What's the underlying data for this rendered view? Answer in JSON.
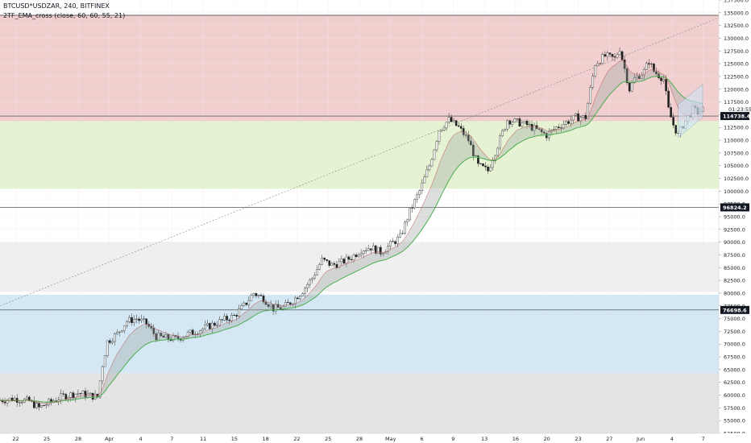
{
  "header": {
    "symbol_line": "BTCUSD*USDZAR, 240, BITFINEX",
    "indicator_line": "2TF_EMA_cross (close, 60, 60, 55, 21)"
  },
  "chart_data": {
    "type": "candlestick",
    "ylim": [
      52500,
      137500
    ],
    "y_ticks": [
      "52500.0",
      "55000.0",
      "57500.0",
      "60000.0",
      "62500.0",
      "65000.0",
      "67500.0",
      "70000.0",
      "72500.0",
      "75000.0",
      "77500.0",
      "80000.0",
      "82500.0",
      "85000.0",
      "87500.0",
      "90000.0",
      "92500.0",
      "95000.0",
      "97500.0",
      "100000.0",
      "102500.0",
      "105000.0",
      "107500.0",
      "110000.0",
      "112500.0",
      "115000.0",
      "117500.0",
      "120000.0",
      "122500.0",
      "125000.0",
      "127500.0",
      "130000.0",
      "132500.0",
      "135000.0",
      "137500.0"
    ],
    "x_labels": [
      "22",
      "25",
      "28",
      "Apr",
      "4",
      "7",
      "11",
      "15",
      "18",
      "22",
      "25",
      "28",
      "May",
      "6",
      "9",
      "13",
      "16",
      "20",
      "23",
      "27",
      "Jun",
      "4",
      "7"
    ],
    "zones": [
      {
        "name": "red-zone",
        "from": 113700,
        "to": 134500,
        "color": "#f2cfcf"
      },
      {
        "name": "green-zone",
        "from": 100500,
        "to": 113700,
        "color": "#e5f3d2"
      },
      {
        "name": "grey-zone",
        "from": 80300,
        "to": 90000,
        "color": "#efefef"
      },
      {
        "name": "blue-zone",
        "from": 64300,
        "to": 79700,
        "color": "#d3e8f4"
      },
      {
        "name": "bottom-grey-zone",
        "from": 52500,
        "to": 64300,
        "color": "#e4e4e4"
      }
    ],
    "levels": [
      {
        "value": 134500,
        "label": ""
      },
      {
        "value": 114738.4,
        "label": "114738.4"
      },
      {
        "value": 96824.2,
        "label": "96824.2"
      },
      {
        "value": 76698.6,
        "label": "76698.6"
      }
    ],
    "countdown_label": "01:23:55",
    "price_path": [
      [
        0,
        59000
      ],
      [
        3,
        59300
      ],
      [
        6,
        58800
      ],
      [
        8,
        57500
      ],
      [
        10,
        58500
      ],
      [
        13,
        59800
      ],
      [
        16,
        60400
      ],
      [
        18,
        60000
      ],
      [
        20,
        59600
      ],
      [
        21,
        66000
      ],
      [
        22,
        70500
      ],
      [
        24,
        72000
      ],
      [
        26,
        74500
      ],
      [
        28,
        75000
      ],
      [
        30,
        74000
      ],
      [
        32,
        71500
      ],
      [
        34,
        71200
      ],
      [
        36,
        71000
      ],
      [
        38,
        71800
      ],
      [
        40,
        72500
      ],
      [
        42,
        73200
      ],
      [
        44,
        74000
      ],
      [
        46,
        74800
      ],
      [
        48,
        75500
      ],
      [
        50,
        77500
      ],
      [
        52,
        80000
      ],
      [
        54,
        79000
      ],
      [
        55,
        78000
      ],
      [
        56,
        77000
      ],
      [
        58,
        77200
      ],
      [
        60,
        78500
      ],
      [
        62,
        80500
      ],
      [
        64,
        83000
      ],
      [
        66,
        86500
      ],
      [
        68,
        85500
      ],
      [
        70,
        86000
      ],
      [
        72,
        87000
      ],
      [
        74,
        88500
      ],
      [
        76,
        89000
      ],
      [
        78,
        88000
      ],
      [
        80,
        89500
      ],
      [
        82,
        91000
      ],
      [
        84,
        96000
      ],
      [
        86,
        100000
      ],
      [
        88,
        105000
      ],
      [
        90,
        112000
      ],
      [
        92,
        114000
      ],
      [
        94,
        112500
      ],
      [
        96,
        110000
      ],
      [
        98,
        105000
      ],
      [
        100,
        104000
      ],
      [
        102,
        109000
      ],
      [
        104,
        114000
      ],
      [
        106,
        113500
      ],
      [
        108,
        113000
      ],
      [
        110,
        112000
      ],
      [
        112,
        111000
      ],
      [
        114,
        112500
      ],
      [
        116,
        113500
      ],
      [
        118,
        114500
      ],
      [
        120,
        114500
      ],
      [
        121,
        120000
      ],
      [
        122,
        125000
      ],
      [
        124,
        126500
      ],
      [
        126,
        126000
      ],
      [
        127,
        128000
      ],
      [
        128,
        124000
      ],
      [
        129,
        120000
      ],
      [
        130,
        122000
      ],
      [
        132,
        123500
      ],
      [
        133,
        125500
      ],
      [
        134,
        123500
      ],
      [
        136,
        122000
      ],
      [
        137,
        116000
      ],
      [
        138,
        113000
      ],
      [
        139,
        111000
      ],
      [
        140,
        113000
      ],
      [
        141,
        114500
      ],
      [
        142,
        116000
      ],
      [
        143,
        115500
      ],
      [
        144,
        116000
      ]
    ],
    "xmax": 144,
    "grid": true
  }
}
